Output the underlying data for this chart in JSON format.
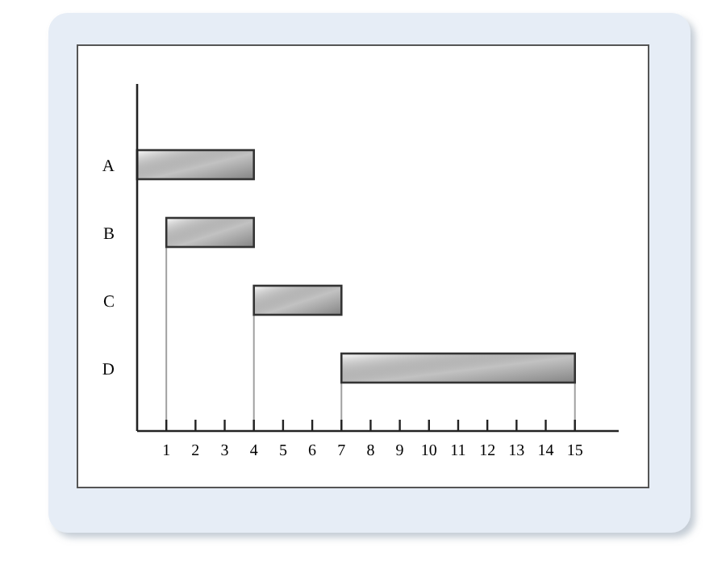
{
  "chart_data": {
    "type": "bar",
    "orientation": "horizontal",
    "categories": [
      "A",
      "B",
      "C",
      "D"
    ],
    "base": [
      0,
      1,
      4,
      7
    ],
    "values": [
      4,
      3,
      3,
      8
    ],
    "color": "#333333",
    "xlim": [
      0,
      16.5
    ],
    "xticks": [
      1,
      2,
      3,
      4,
      5,
      6,
      7,
      8,
      9,
      10,
      11,
      12,
      13,
      14,
      15
    ],
    "grid": false,
    "ref_lines": [
      {
        "axis": "x",
        "value": 1,
        "color": "#a0a0a0"
      },
      {
        "axis": "x",
        "value": 4,
        "color": "#a0a0a0"
      },
      {
        "axis": "x",
        "value": 7,
        "color": "#a0a0a0"
      },
      {
        "axis": "x",
        "value": 15,
        "color": "#a0a0a0"
      }
    ]
  }
}
